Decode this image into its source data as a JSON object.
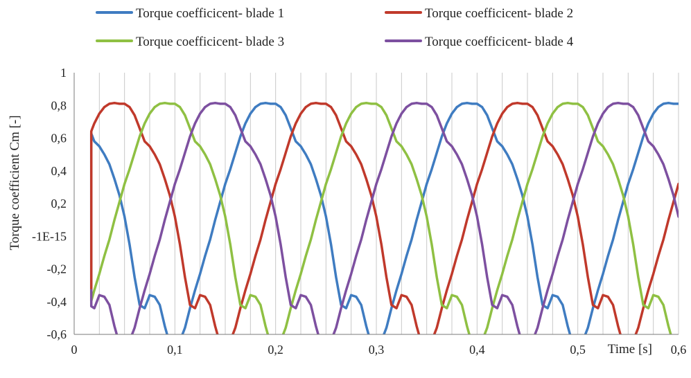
{
  "chart_data": {
    "type": "line",
    "title": "",
    "xlabel": "Time [s]",
    "ylabel": "Torque coefficient Cm [-]",
    "xlim": [
      0,
      0.6
    ],
    "ylim": [
      -0.6,
      1
    ],
    "x_ticks": [
      0,
      0.1,
      0.2,
      0.3,
      0.4,
      0.5,
      0.6
    ],
    "x_tick_labels": [
      "0",
      "0,1",
      "0,2",
      "0,3",
      "0,4",
      "0,5",
      "0,6"
    ],
    "y_ticks": [
      -0.6,
      -0.4,
      -0.2,
      0,
      0.2,
      0.4,
      0.6,
      0.8,
      1
    ],
    "y_tick_labels": [
      "-0,6",
      "-0,4",
      "-0,2",
      "-1E-15",
      "0,2",
      "0,4",
      "0,6",
      "0,8",
      "1"
    ],
    "grid": {
      "vertical": true,
      "vertical_step": 0.025,
      "horizontal": false
    },
    "legend_position": "top",
    "period": 0.2,
    "x_start": 0.017,
    "x_end": 0.6,
    "series": [
      {
        "name": "Torque coefficicent- blade 1",
        "color": "#3F7CC1",
        "phase": 0.0
      },
      {
        "name": "Torque coefficicent- blade 2",
        "color": "#C0392B",
        "phase": 0.05
      },
      {
        "name": "Torque coefficicent- blade 3",
        "color": "#8FC043",
        "phase": 0.1
      },
      {
        "name": "Torque coefficicent- blade 4",
        "color": "#7D50A0",
        "phase": 0.15
      }
    ],
    "waveform": {
      "t": [
        0.0,
        0.005,
        0.01,
        0.015,
        0.02,
        0.025,
        0.03,
        0.035,
        0.04,
        0.045,
        0.05,
        0.055,
        0.06,
        0.065,
        0.07,
        0.075,
        0.08,
        0.085,
        0.09,
        0.095,
        0.1,
        0.105,
        0.11,
        0.115,
        0.12,
        0.125,
        0.13,
        0.135,
        0.14,
        0.145,
        0.15,
        0.155,
        0.16,
        0.165,
        0.17,
        0.175,
        0.18,
        0.185,
        0.19,
        0.195,
        0.2
      ],
      "cm": [
        0.81,
        0.79,
        0.74,
        0.66,
        0.58,
        0.55,
        0.5,
        0.44,
        0.35,
        0.25,
        0.12,
        -0.05,
        -0.25,
        -0.42,
        -0.44,
        -0.36,
        -0.37,
        -0.42,
        -0.55,
        -0.66,
        -0.7,
        -0.64,
        -0.56,
        -0.44,
        -0.33,
        -0.23,
        -0.12,
        -0.02,
        0.1,
        0.21,
        0.32,
        0.41,
        0.51,
        0.61,
        0.69,
        0.75,
        0.79,
        0.81,
        0.815,
        0.81,
        0.81
      ]
    },
    "seam": {
      "from_value": -0.33,
      "to_value": -0.19
    }
  }
}
